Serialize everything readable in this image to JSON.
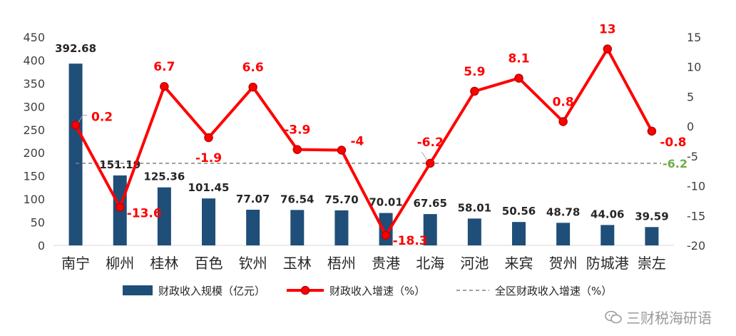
{
  "chart_data": {
    "type": "bar",
    "categories": [
      "南宁",
      "柳州",
      "桂林",
      "百色",
      "钦州",
      "玉林",
      "梧州",
      "贵港",
      "北海",
      "河池",
      "来宾",
      "贺州",
      "防城港",
      "崇左"
    ],
    "series": [
      {
        "name": "财政收入规模（亿元）",
        "type": "bar",
        "axis": "left",
        "color": "#1f4e79",
        "values": [
          392.68,
          151.19,
          125.36,
          101.45,
          77.07,
          76.54,
          75.7,
          70.01,
          67.65,
          58.01,
          50.56,
          48.78,
          44.06,
          39.59
        ],
        "labels": [
          "392.68",
          "151.19",
          "125.36",
          "101.45",
          "77.07",
          "76.54",
          "75.70",
          "70.01",
          "67.65",
          "58.01",
          "50.56",
          "48.78",
          "44.06",
          "39.59"
        ]
      },
      {
        "name": "财政收入增速（%）",
        "type": "line",
        "axis": "right",
        "color": "#ff0000",
        "values": [
          0.2,
          -13.6,
          6.7,
          -1.9,
          6.6,
          -3.9,
          -4,
          -18.3,
          -6.2,
          5.9,
          8.1,
          0.8,
          13,
          -0.8
        ],
        "labels": [
          "0.2",
          "-13.6",
          "6.7",
          "-1.9",
          "6.6",
          "-3.9",
          "-4",
          "-18.3",
          "-6.2",
          "5.9",
          "8.1",
          "0.8",
          "13",
          "-0.8"
        ]
      },
      {
        "name": "全区财政收入增速（%）",
        "type": "reference_line",
        "axis": "right",
        "color": "#808080",
        "value": -6.2,
        "label": "-6.2",
        "label_color": "#70ad47"
      }
    ],
    "left_axis": {
      "min": 0,
      "max": 450,
      "ticks": [
        "0",
        "50",
        "100",
        "150",
        "200",
        "250",
        "300",
        "350",
        "400",
        "450"
      ]
    },
    "right_axis": {
      "min": -20,
      "max": 15,
      "ticks": [
        "-20",
        "-15",
        "-10",
        "-5",
        "0",
        "5",
        "10",
        "15"
      ]
    },
    "legend_position": "bottom",
    "grid": false
  },
  "watermark": {
    "text": "三财税海研语",
    "icon": "wechat-icon"
  }
}
